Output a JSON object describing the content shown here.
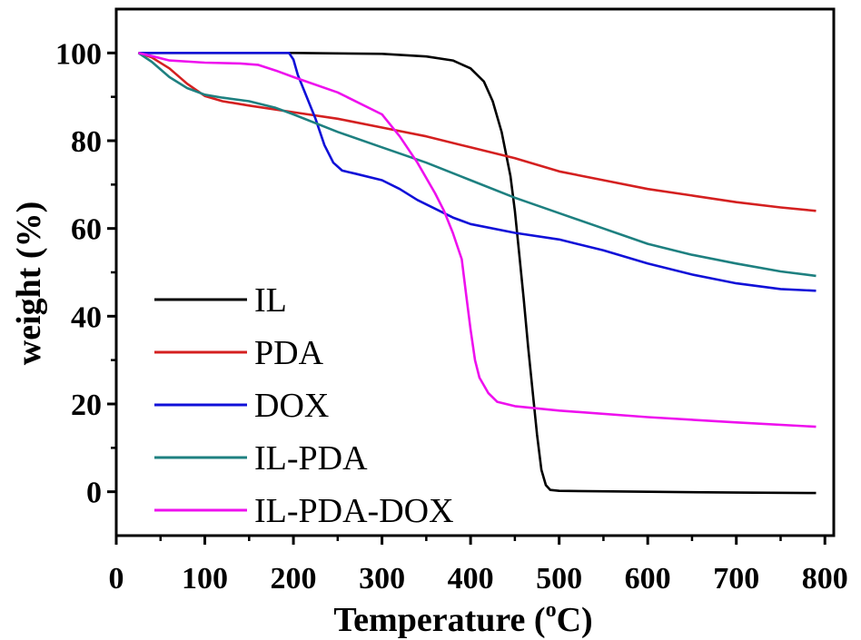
{
  "chart_data": {
    "type": "line",
    "xlabel": "Temperature (°C)",
    "xlabel_prefix": "Temperature (",
    "xlabel_unit_sup": "o",
    "xlabel_unit": "C)",
    "ylabel": "weight (%)",
    "xlim": [
      0,
      810
    ],
    "ylim": [
      -10,
      110
    ],
    "x_ticks": [
      0,
      100,
      200,
      300,
      400,
      500,
      600,
      700,
      800
    ],
    "y_ticks": [
      0,
      20,
      40,
      60,
      80,
      100
    ],
    "legend_position": "bottom-left",
    "grid": false,
    "series": [
      {
        "name": "IL",
        "color": "#000000",
        "x": [
          25,
          100,
          200,
          300,
          350,
          380,
          400,
          415,
          425,
          435,
          445,
          450,
          455,
          460,
          465,
          470,
          475,
          480,
          485,
          490,
          500,
          600,
          700,
          790
        ],
        "y": [
          100,
          100,
          100,
          99.8,
          99.2,
          98.3,
          96.5,
          93.5,
          89,
          82,
          72,
          64,
          54,
          44,
          33,
          23,
          13,
          5,
          1.5,
          0.4,
          0.2,
          0,
          -0.2,
          -0.3
        ]
      },
      {
        "name": "PDA",
        "color": "#d42020",
        "x": [
          25,
          40,
          60,
          80,
          100,
          120,
          150,
          200,
          250,
          300,
          350,
          400,
          450,
          500,
          550,
          600,
          650,
          700,
          750,
          790
        ],
        "y": [
          100,
          99,
          96.5,
          93,
          90.2,
          89,
          88,
          86.5,
          85,
          83,
          81,
          78.5,
          76,
          73,
          71,
          69,
          67.5,
          66,
          64.8,
          64
        ]
      },
      {
        "name": "DOX",
        "color": "#1010d8",
        "x": [
          25,
          100,
          195,
          200,
          205,
          215,
          225,
          235,
          245,
          255,
          270,
          300,
          320,
          340,
          360,
          380,
          400,
          450,
          500,
          550,
          600,
          650,
          700,
          750,
          790
        ],
        "y": [
          100,
          100,
          100,
          98.5,
          95,
          90,
          85,
          79,
          75,
          73.2,
          72.5,
          71,
          69,
          66.5,
          64.5,
          62.5,
          61,
          59,
          57.5,
          55,
          52,
          49.5,
          47.5,
          46.2,
          45.8
        ]
      },
      {
        "name": "IL-PDA",
        "color": "#1e8080",
        "x": [
          25,
          40,
          60,
          80,
          100,
          120,
          150,
          180,
          200,
          250,
          300,
          350,
          400,
          450,
          500,
          550,
          600,
          650,
          700,
          750,
          790
        ],
        "y": [
          100,
          98,
          94.5,
          92,
          90.5,
          89.8,
          89,
          87.5,
          86,
          82,
          78.5,
          75,
          71,
          67,
          63.5,
          60,
          56.5,
          54,
          52,
          50.2,
          49.2
        ]
      },
      {
        "name": "IL-PDA-DOX",
        "color": "#ee10ee",
        "x": [
          25,
          40,
          60,
          100,
          140,
          160,
          180,
          200,
          250,
          300,
          320,
          340,
          360,
          370,
          380,
          390,
          395,
          400,
          405,
          410,
          420,
          430,
          450,
          500,
          600,
          700,
          790
        ],
        "y": [
          100,
          99.3,
          98.3,
          97.8,
          97.6,
          97.3,
          96,
          94.5,
          91,
          86,
          81,
          75,
          68,
          64,
          59,
          53,
          45,
          37,
          30,
          26,
          22.5,
          20.5,
          19.5,
          18.5,
          17,
          15.8,
          14.8
        ]
      }
    ]
  }
}
